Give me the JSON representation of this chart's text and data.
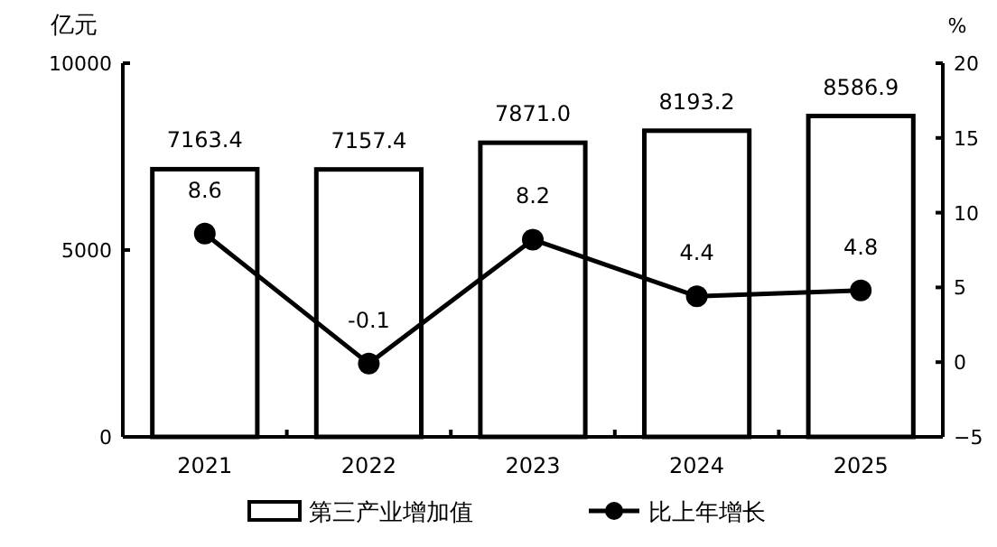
{
  "chart_data": {
    "type": "bar",
    "ylabel": "亿元",
    "y2label": "%",
    "categories": [
      "2021",
      "2022",
      "2023",
      "2024",
      "2025"
    ],
    "series": [
      {
        "name": "第三产业增加值",
        "color": "#ffffff",
        "values": [
          7163.4,
          7157.4,
          7871.0,
          8193.2,
          8586.9
        ],
        "value_labels": [
          "7163.4",
          "7157.4",
          "7871.0",
          "8193.2",
          "8586.9"
        ]
      },
      {
        "name": "比上年增长",
        "type": "line",
        "axis": "y2",
        "color": "#000000",
        "values": [
          8.6,
          -0.1,
          8.2,
          4.4,
          4.8
        ]
      }
    ],
    "ylim": [
      0,
      10000
    ],
    "yticks": [
      0,
      5000,
      10000
    ],
    "y2lim": [
      -5,
      20
    ],
    "y2ticks": [
      -5,
      0,
      5,
      10,
      15,
      20
    ],
    "data_labels": true,
    "legend": "bottom",
    "marker": "circle",
    "line_style": "solid",
    "grid": false
  }
}
